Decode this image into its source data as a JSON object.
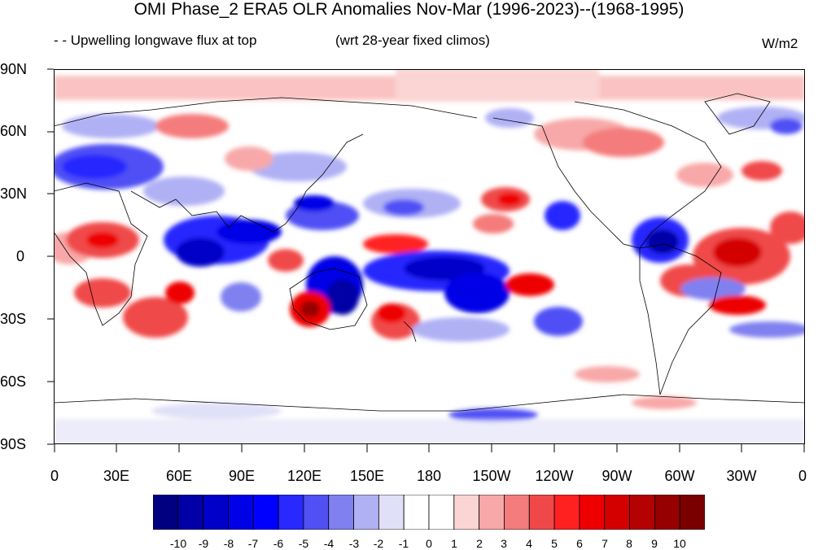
{
  "title": "OMI Phase_2 ERA5 OLR Anomalies Nov-Mar (1996-2023)--(1968-1995)",
  "subtitle_left": "- - Upwelling longwave flux at top",
  "subtitle_center": "(wrt 28-year fixed climos)",
  "units": "W/m2",
  "lat_labels": [
    "90N",
    "60N",
    "30N",
    "0",
    "30S",
    "60S",
    "90S"
  ],
  "lon_labels": [
    "0",
    "30E",
    "60E",
    "90E",
    "120E",
    "150E",
    "180",
    "150W",
    "120W",
    "90W",
    "60W",
    "30W",
    "0"
  ],
  "colorbar": {
    "labels": [
      "-10",
      "-9",
      "-8",
      "-7",
      "-6",
      "-5",
      "-4",
      "-3",
      "-2",
      "-1",
      "0",
      "1",
      "2",
      "3",
      "4",
      "5",
      "6",
      "7",
      "8",
      "9",
      "10"
    ],
    "colors": [
      "#000080",
      "#0000a6",
      "#0000c8",
      "#0000e6",
      "#0000ff",
      "#2828ff",
      "#5050f5",
      "#8080f0",
      "#b0b0f5",
      "#e0e0f8",
      "#ffffff",
      "#ffffff",
      "#fbd4d4",
      "#f8a8a8",
      "#f47c7c",
      "#f04848",
      "#ff2020",
      "#ee0000",
      "#d40000",
      "#b40000",
      "#960000",
      "#7a0000"
    ]
  }
}
